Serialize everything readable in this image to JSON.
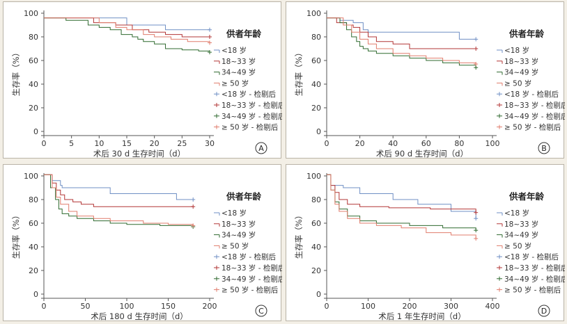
{
  "legend_title": "供者年龄",
  "y_axis_label": "生存率（%）",
  "groups": [
    {
      "label": "<18 岁",
      "censor_label": "<18 岁 - 检剔后",
      "color": "#6f8fc4"
    },
    {
      "label": "18~33 岁",
      "censor_label": "18~33 岁 - 检剔后",
      "color": "#b23535"
    },
    {
      "label": "34~49 岁",
      "censor_label": "34~49 岁 - 检剔后",
      "color": "#2f6a2f"
    },
    {
      "label": "≥ 50 岁",
      "censor_label": "≥ 50 岁 - 检剔后",
      "color": "#e07c6c"
    }
  ],
  "chart_data": [
    {
      "type": "line",
      "panel": "A",
      "panel_label": "A",
      "xlabel": "术后 30 d 生存时间（d）",
      "ylabel": "生存率（%）",
      "xlim": [
        0,
        30
      ],
      "ylim": [
        0,
        100
      ],
      "xticks": [
        0,
        5,
        10,
        15,
        20,
        25,
        30
      ],
      "yticks": [
        0,
        20,
        40,
        60,
        80,
        100
      ],
      "series": [
        {
          "name": "<18 岁",
          "x": [
            0,
            5,
            10,
            15,
            20,
            22,
            30
          ],
          "y": [
            96,
            96,
            96,
            90,
            90,
            86,
            86
          ]
        },
        {
          "name": "18~33 岁",
          "x": [
            0,
            6,
            9,
            13,
            16,
            19,
            22,
            25,
            30
          ],
          "y": [
            96,
            96,
            92,
            90,
            86,
            84,
            82,
            80,
            80
          ]
        },
        {
          "name": "34~49 岁",
          "x": [
            0,
            4,
            8,
            10,
            12,
            14,
            16,
            17,
            18,
            20,
            22,
            25,
            28,
            30
          ],
          "y": [
            96,
            94,
            90,
            88,
            86,
            82,
            80,
            78,
            76,
            74,
            70,
            69,
            68,
            67
          ]
        },
        {
          "name": "≥ 50 岁",
          "x": [
            0,
            5,
            10,
            13,
            15,
            18,
            20,
            23,
            26,
            30
          ],
          "y": [
            96,
            96,
            92,
            88,
            86,
            82,
            80,
            78,
            76,
            75
          ]
        }
      ]
    },
    {
      "type": "line",
      "panel": "B",
      "panel_label": "B",
      "xlabel": "术后 90 d 生存时间（d）",
      "ylabel": "生存率（%）",
      "xlim": [
        0,
        100
      ],
      "ylim": [
        0,
        100
      ],
      "xticks": [
        0,
        20,
        40,
        60,
        80,
        100
      ],
      "yticks": [
        0,
        20,
        40,
        60,
        80,
        100
      ],
      "series": [
        {
          "name": "<18 岁",
          "x": [
            0,
            8,
            16,
            22,
            25,
            80,
            90
          ],
          "y": [
            96,
            94,
            92,
            86,
            84,
            78,
            78
          ]
        },
        {
          "name": "18~33 岁",
          "x": [
            0,
            6,
            12,
            16,
            20,
            25,
            30,
            40,
            50,
            60,
            90
          ],
          "y": [
            96,
            92,
            90,
            88,
            84,
            80,
            76,
            74,
            70,
            70,
            70
          ]
        },
        {
          "name": "34~49 岁",
          "x": [
            0,
            8,
            12,
            15,
            18,
            20,
            22,
            25,
            30,
            40,
            50,
            60,
            70,
            80,
            90
          ],
          "y": [
            96,
            92,
            86,
            80,
            76,
            72,
            70,
            68,
            66,
            64,
            62,
            60,
            58,
            56,
            54
          ]
        },
        {
          "name": "≥ 50 岁",
          "x": [
            0,
            10,
            15,
            20,
            25,
            30,
            40,
            50,
            60,
            70,
            80,
            90
          ],
          "y": [
            96,
            90,
            84,
            78,
            74,
            70,
            66,
            64,
            62,
            60,
            58,
            57
          ]
        }
      ]
    },
    {
      "type": "line",
      "panel": "C",
      "panel_label": "C",
      "xlabel": "术后 180 d 生存时间（d）",
      "ylabel": "生存率（%）",
      "xlim": [
        0,
        200
      ],
      "ylim": [
        0,
        100
      ],
      "xticks": [
        0,
        50,
        100,
        150,
        200
      ],
      "yticks": [
        0,
        20,
        40,
        60,
        80,
        100
      ],
      "series": [
        {
          "name": "<18 岁",
          "x": [
            0,
            10,
            20,
            22,
            80,
            160,
            180
          ],
          "y": [
            101,
            96,
            92,
            90,
            85,
            80,
            80
          ]
        },
        {
          "name": "18~33 岁",
          "x": [
            0,
            10,
            15,
            20,
            25,
            35,
            45,
            60,
            180
          ],
          "y": [
            101,
            94,
            88,
            84,
            80,
            78,
            76,
            74,
            74
          ]
        },
        {
          "name": "34~49 岁",
          "x": [
            0,
            8,
            14,
            18,
            22,
            30,
            40,
            60,
            80,
            100,
            140,
            180
          ],
          "y": [
            101,
            90,
            80,
            72,
            68,
            66,
            64,
            62,
            60,
            59,
            58,
            57
          ]
        },
        {
          "name": "≥ 50 岁",
          "x": [
            0,
            10,
            15,
            20,
            30,
            40,
            60,
            80,
            120,
            150,
            180
          ],
          "y": [
            101,
            90,
            82,
            76,
            70,
            66,
            64,
            62,
            60,
            59,
            58
          ]
        }
      ]
    },
    {
      "type": "line",
      "panel": "D",
      "panel_label": "D",
      "xlabel": "术后 1 年生存时间（d）",
      "ylabel": "生存率（%）",
      "xlim": [
        0,
        400
      ],
      "ylim": [
        0,
        100
      ],
      "xticks": [
        0,
        100,
        200,
        300,
        400
      ],
      "yticks": [
        0,
        20,
        40,
        60,
        80,
        100
      ],
      "series": [
        {
          "name": "<18 岁",
          "x": [
            0,
            10,
            40,
            80,
            160,
            220,
            300,
            360
          ],
          "y": [
            101,
            92,
            90,
            85,
            80,
            76,
            70,
            64
          ]
        },
        {
          "name": "18~33 岁",
          "x": [
            0,
            10,
            20,
            30,
            50,
            80,
            150,
            250,
            360
          ],
          "y": [
            101,
            92,
            86,
            80,
            76,
            74,
            73,
            72,
            69
          ]
        },
        {
          "name": "34~49 岁",
          "x": [
            0,
            10,
            20,
            30,
            50,
            80,
            120,
            200,
            280,
            360
          ],
          "y": [
            101,
            88,
            78,
            72,
            66,
            62,
            60,
            58,
            56,
            54
          ]
        },
        {
          "name": "≥ 50 岁",
          "x": [
            0,
            10,
            20,
            30,
            50,
            80,
            120,
            180,
            240,
            300,
            360
          ],
          "y": [
            101,
            88,
            76,
            70,
            64,
            60,
            58,
            56,
            52,
            50,
            47
          ]
        }
      ]
    }
  ]
}
